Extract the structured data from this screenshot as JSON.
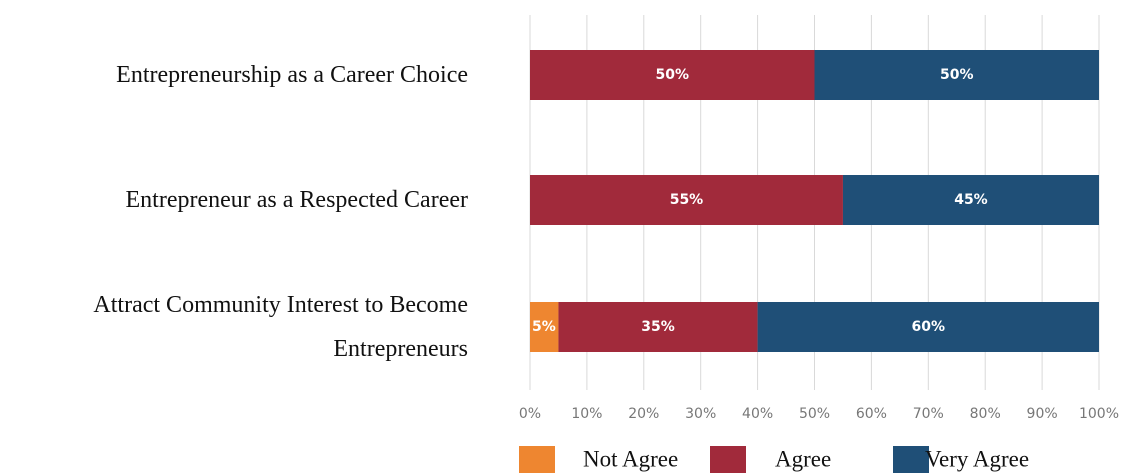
{
  "chart_data": {
    "type": "stacked_barh",
    "categories": [
      "Entrepreneurship as a Career Choice",
      "Entrepreneur as a Respected Career",
      "Attract Community Interest to Become Entrepreneurs"
    ],
    "series": [
      {
        "name": "Not Agree",
        "color": "#ee8630",
        "values": [
          0,
          0,
          5
        ],
        "value_labels": [
          null,
          null,
          "5%"
        ]
      },
      {
        "name": "Agree",
        "color": "#a12a3b",
        "values": [
          50,
          55,
          35
        ],
        "value_labels": [
          "50%",
          "55%",
          "35%"
        ]
      },
      {
        "name": "Very Agree",
        "color": "#1f4f77",
        "values": [
          50,
          45,
          60
        ],
        "value_labels": [
          "50%",
          "45%",
          "60%"
        ]
      }
    ],
    "xlim": [
      0,
      100
    ],
    "xticks": [
      {
        "value": 0,
        "label": "0%"
      },
      {
        "value": 10,
        "label": "10%"
      },
      {
        "value": 20,
        "label": "20%"
      },
      {
        "value": 30,
        "label": "30%"
      },
      {
        "value": 40,
        "label": "40%"
      },
      {
        "value": 50,
        "label": "50%"
      },
      {
        "value": 60,
        "label": "60%"
      },
      {
        "value": 70,
        "label": "70%"
      },
      {
        "value": 80,
        "label": "80%"
      },
      {
        "value": 90,
        "label": "90%"
      },
      {
        "value": 100,
        "label": "100%"
      }
    ],
    "grid": true,
    "legend": "bottom"
  }
}
